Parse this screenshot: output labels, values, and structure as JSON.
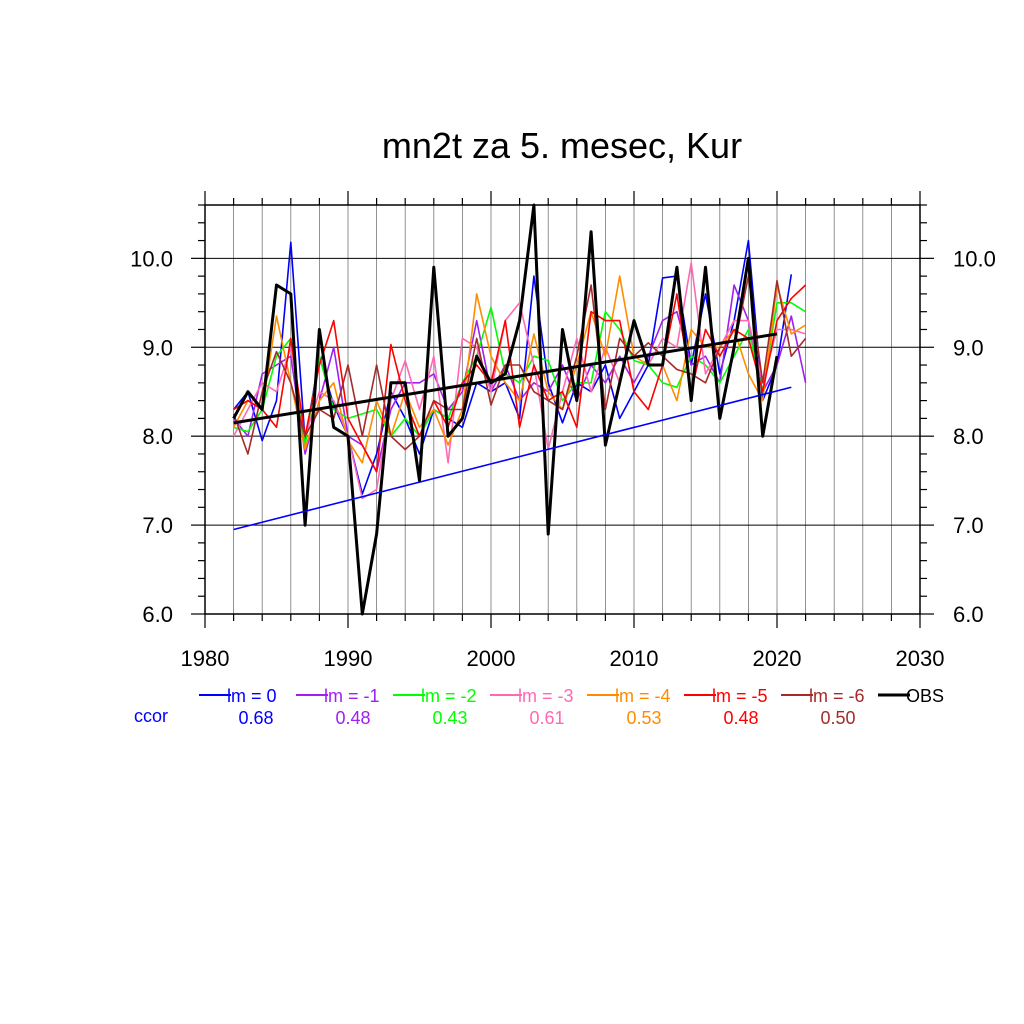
{
  "chart_data": {
    "type": "line",
    "title": "mn2t za 5. mesec, Kur",
    "xlabel": "",
    "ylabel": "",
    "xlim": [
      1980,
      2030
    ],
    "ylim": [
      6.0,
      10.6
    ],
    "x_ticks": [
      1980,
      1990,
      2000,
      2010,
      2020,
      2030
    ],
    "y_ticks": [
      6.0,
      7.0,
      8.0,
      9.0,
      10.0
    ],
    "x_tick_labels": [
      "1980",
      "1990",
      "2000",
      "2010",
      "2020",
      "2030"
    ],
    "y_tick_labels": [
      "6.0",
      "7.0",
      "8.0",
      "9.0",
      "10.0"
    ],
    "grid": true,
    "legend_position": "bottom",
    "ccor_label": "ccor",
    "series": [
      {
        "name": "lm = 0",
        "color": "#0000ff",
        "ccor": "0.68",
        "x": [
          1982,
          1983,
          1984,
          1985,
          1986,
          1987,
          1988,
          1989,
          1990,
          1991,
          1992,
          1993,
          1994,
          1995,
          1996,
          1997,
          1998,
          1999,
          2000,
          2001,
          2002,
          2003,
          2004,
          2005,
          2006,
          2007,
          2008,
          2009,
          2010,
          2011,
          2012,
          2013,
          2014,
          2015,
          2016,
          2017,
          2018,
          2019,
          2020,
          2021
        ],
        "values": [
          8.3,
          8.5,
          7.95,
          8.4,
          10.18,
          7.95,
          8.9,
          8.35,
          8.0,
          7.35,
          7.8,
          8.5,
          8.2,
          7.8,
          8.3,
          8.2,
          8.1,
          8.6,
          8.5,
          8.6,
          8.2,
          9.8,
          8.6,
          8.15,
          8.6,
          8.5,
          8.8,
          8.2,
          8.5,
          8.8,
          9.78,
          9.8,
          8.8,
          9.6,
          8.7,
          9.3,
          10.2,
          8.4,
          8.8,
          9.82
        ]
      },
      {
        "name": "lm = -1",
        "color": "#a020f0",
        "ccor": "0.48",
        "x": [
          1982,
          1983,
          1984,
          1985,
          1986,
          1987,
          1988,
          1989,
          1990,
          1991,
          1992,
          1993,
          1994,
          1995,
          1996,
          1997,
          1998,
          1999,
          2000,
          2001,
          2002,
          2003,
          2004,
          2005,
          2006,
          2007,
          2008,
          2009,
          2010,
          2011,
          2012,
          2013,
          2014,
          2015,
          2016,
          2017,
          2018,
          2019,
          2020,
          2021,
          2022
        ],
        "values": [
          8.2,
          8.0,
          8.7,
          8.8,
          8.9,
          7.8,
          8.4,
          9.0,
          8.0,
          7.9,
          7.6,
          8.3,
          8.6,
          8.6,
          8.7,
          8.3,
          8.5,
          9.3,
          8.5,
          8.8,
          8.4,
          8.6,
          8.5,
          8.8,
          8.4,
          8.8,
          8.6,
          8.9,
          8.6,
          8.9,
          9.3,
          9.4,
          8.8,
          8.9,
          8.6,
          9.7,
          9.3,
          8.5,
          8.8,
          9.35,
          8.6
        ]
      },
      {
        "name": "lm = -2",
        "color": "#00ff00",
        "ccor": "0.43",
        "x": [
          1982,
          1983,
          1984,
          1985,
          1986,
          1987,
          1988,
          1989,
          1990,
          1991,
          1992,
          1993,
          1994,
          1995,
          1996,
          1997,
          1998,
          1999,
          2000,
          2001,
          2002,
          2003,
          2004,
          2005,
          2006,
          2007,
          2008,
          2009,
          2010,
          2011,
          2012,
          2013,
          2014,
          2015,
          2016,
          2017,
          2018,
          2019,
          2020,
          2021,
          2022
        ],
        "values": [
          8.1,
          8.05,
          8.3,
          8.9,
          9.1,
          7.9,
          8.9,
          8.3,
          8.2,
          8.25,
          8.3,
          8.0,
          8.2,
          8.0,
          8.3,
          8.2,
          8.6,
          8.9,
          9.45,
          8.7,
          8.6,
          8.9,
          8.85,
          8.4,
          8.6,
          8.6,
          9.4,
          9.2,
          8.85,
          8.8,
          8.6,
          8.55,
          8.9,
          8.8,
          8.6,
          8.9,
          9.2,
          8.5,
          9.5,
          9.5,
          9.4
        ]
      },
      {
        "name": "lm = -3",
        "color": "#ff69b4",
        "ccor": "0.61",
        "x": [
          1982,
          1983,
          1984,
          1985,
          1986,
          1987,
          1988,
          1989,
          1990,
          1991,
          1992,
          1993,
          1994,
          1995,
          1996,
          1997,
          1998,
          1999,
          2000,
          2001,
          2002,
          2003,
          2004,
          2005,
          2006,
          2007,
          2008,
          2009,
          2010,
          2011,
          2012,
          2013,
          2014,
          2015,
          2016,
          2017,
          2018,
          2019,
          2020,
          2021,
          2022
        ],
        "values": [
          8.0,
          8.3,
          8.6,
          8.5,
          9.0,
          8.0,
          8.5,
          8.4,
          8.0,
          7.3,
          7.4,
          8.4,
          8.85,
          8.3,
          8.9,
          7.7,
          9.1,
          9.0,
          8.5,
          9.3,
          9.5,
          8.8,
          7.85,
          8.5,
          9.1,
          8.5,
          9.0,
          8.6,
          9.3,
          8.8,
          9.1,
          9.0,
          9.95,
          8.7,
          9.0,
          9.3,
          9.3,
          8.6,
          9.2,
          9.2,
          9.15
        ]
      },
      {
        "name": "lm = -4",
        "color": "#ff8c00",
        "ccor": "0.53",
        "x": [
          1982,
          1983,
          1984,
          1985,
          1986,
          1987,
          1988,
          1989,
          1990,
          1991,
          1992,
          1993,
          1994,
          1995,
          1996,
          1997,
          1998,
          1999,
          2000,
          2001,
          2002,
          2003,
          2004,
          2005,
          2006,
          2007,
          2008,
          2009,
          2010,
          2011,
          2012,
          2013,
          2014,
          2015,
          2016,
          2017,
          2018,
          2019,
          2020,
          2021,
          2022
        ],
        "values": [
          8.1,
          8.4,
          8.3,
          9.35,
          8.6,
          7.85,
          8.4,
          8.6,
          7.95,
          7.7,
          8.4,
          8.0,
          8.5,
          8.1,
          8.3,
          7.9,
          8.3,
          9.6,
          8.9,
          8.6,
          8.4,
          9.15,
          8.5,
          8.3,
          8.8,
          9.4,
          8.9,
          9.8,
          8.9,
          8.8,
          8.8,
          8.4,
          9.2,
          9.0,
          9.0,
          9.2,
          8.7,
          8.4,
          9.7,
          9.15,
          9.25
        ]
      },
      {
        "name": "lm = -5",
        "color": "#ff0000",
        "ccor": "0.48",
        "x": [
          1982,
          1983,
          1984,
          1985,
          1986,
          1987,
          1988,
          1989,
          1990,
          1991,
          1992,
          1993,
          1994,
          1995,
          1996,
          1997,
          1998,
          1999,
          2000,
          2001,
          2002,
          2003,
          2004,
          2005,
          2006,
          2007,
          2008,
          2009,
          2010,
          2011,
          2012,
          2013,
          2014,
          2015,
          2016,
          2017,
          2018,
          2019,
          2020,
          2021,
          2022
        ],
        "values": [
          8.3,
          8.4,
          8.3,
          8.1,
          9.1,
          8.0,
          8.8,
          9.3,
          8.2,
          7.9,
          7.6,
          9.03,
          8.4,
          8.0,
          8.4,
          8.1,
          8.6,
          8.8,
          8.6,
          9.3,
          8.1,
          8.8,
          8.4,
          8.5,
          8.1,
          9.4,
          9.3,
          9.3,
          8.5,
          8.3,
          8.8,
          9.6,
          8.5,
          9.2,
          8.9,
          9.2,
          9.1,
          8.5,
          9.3,
          9.55,
          9.7
        ]
      },
      {
        "name": "lm = -6",
        "color": "#a52a2a",
        "ccor": "0.50",
        "x": [
          1982,
          1983,
          1984,
          1985,
          1986,
          1987,
          1988,
          1989,
          1990,
          1991,
          1992,
          1993,
          1994,
          1995,
          1996,
          1997,
          1998,
          1999,
          2000,
          2001,
          2002,
          2003,
          2004,
          2005,
          2006,
          2007,
          2008,
          2009,
          2010,
          2011,
          2012,
          2013,
          2014,
          2015,
          2016,
          2017,
          2018,
          2019,
          2020,
          2021,
          2022
        ],
        "values": [
          8.25,
          7.8,
          8.5,
          8.95,
          8.6,
          8.0,
          8.3,
          8.2,
          8.8,
          8.0,
          8.8,
          8.0,
          7.85,
          8.0,
          8.4,
          8.3,
          8.3,
          9.1,
          8.35,
          8.8,
          8.8,
          8.5,
          8.4,
          8.3,
          8.9,
          9.7,
          8.3,
          9.1,
          8.9,
          9.05,
          8.9,
          8.75,
          8.7,
          8.6,
          9.0,
          9.0,
          9.8,
          8.6,
          9.75,
          8.9,
          9.1
        ]
      },
      {
        "name": "OBS",
        "color": "#000000",
        "ccor": "",
        "x": [
          1982,
          1983,
          1984,
          1985,
          1986,
          1987,
          1988,
          1989,
          1990,
          1991,
          1992,
          1993,
          1994,
          1995,
          1996,
          1997,
          1998,
          1999,
          2000,
          2001,
          2002,
          2003,
          2004,
          2005,
          2006,
          2007,
          2008,
          2009,
          2010,
          2011,
          2012,
          2013,
          2014,
          2015,
          2016,
          2017,
          2018,
          2019,
          2020
        ],
        "values": [
          8.2,
          8.5,
          8.3,
          9.7,
          9.6,
          7.0,
          9.2,
          8.1,
          8.0,
          6.0,
          6.9,
          8.6,
          8.6,
          7.5,
          9.9,
          8.0,
          8.2,
          8.9,
          8.6,
          8.7,
          9.3,
          10.6,
          6.9,
          9.2,
          8.4,
          10.3,
          7.9,
          8.6,
          9.3,
          8.8,
          8.8,
          9.9,
          8.4,
          9.9,
          8.2,
          9.0,
          10.0,
          8.0,
          8.9
        ]
      }
    ],
    "trend_lines": [
      {
        "name": "OBS trend",
        "color": "#000000",
        "x": [
          1982,
          2020
        ],
        "values": [
          8.15,
          9.15
        ]
      },
      {
        "name": "lm = 0 trend",
        "color": "#0000ff",
        "x": [
          1982,
          2021
        ],
        "values": [
          6.95,
          8.55
        ]
      }
    ]
  }
}
